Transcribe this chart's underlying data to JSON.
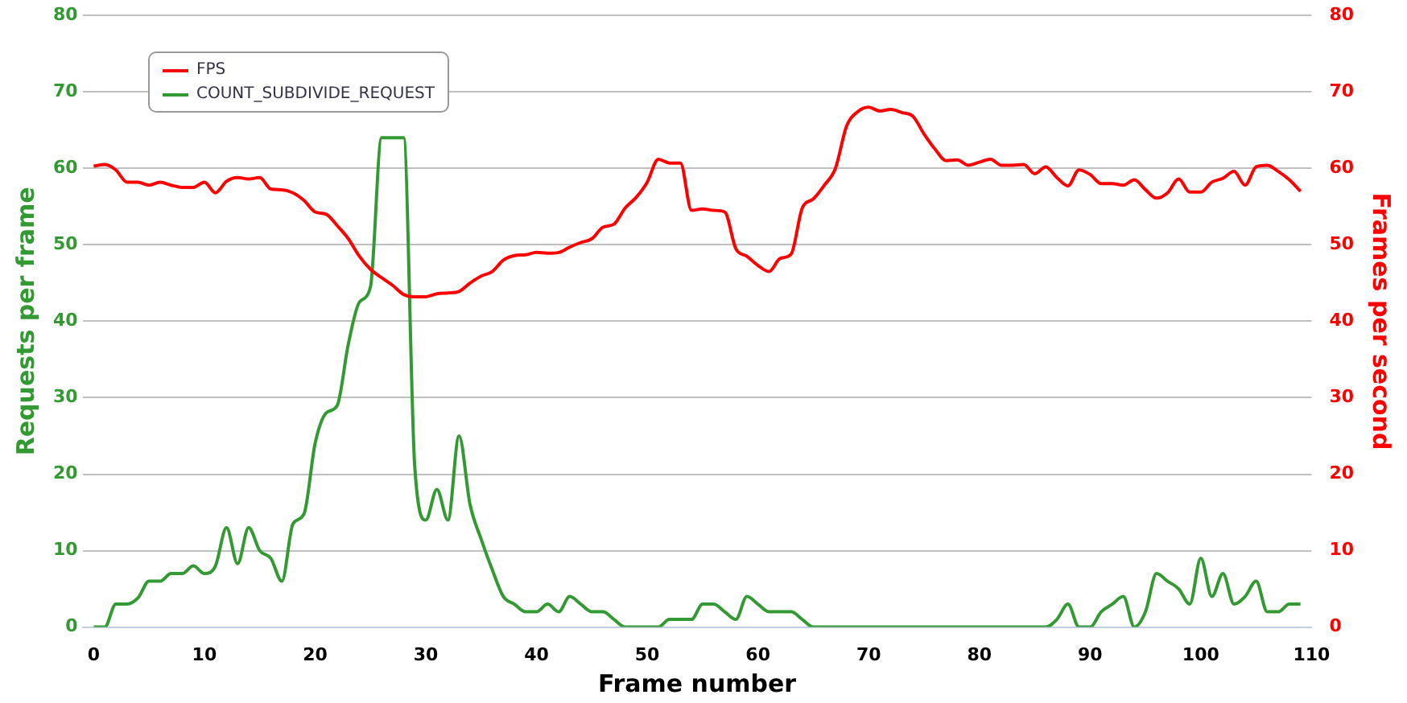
{
  "chart_data": {
    "type": "line",
    "xlabel": "Frame number",
    "ylabel": "Requests per frame",
    "y2label": "Frames per second",
    "x": [
      0,
      1,
      2,
      3,
      4,
      5,
      6,
      7,
      8,
      9,
      10,
      11,
      12,
      13,
      14,
      15,
      16,
      17,
      18,
      19,
      20,
      21,
      22,
      23,
      24,
      25,
      26,
      27,
      28,
      29,
      30,
      31,
      32,
      33,
      34,
      35,
      36,
      37,
      38,
      39,
      40,
      41,
      42,
      43,
      44,
      45,
      46,
      47,
      48,
      49,
      50,
      51,
      52,
      53,
      54,
      55,
      56,
      57,
      58,
      59,
      60,
      61,
      62,
      63,
      64,
      65,
      66,
      67,
      68,
      69,
      70,
      71,
      72,
      73,
      74,
      75,
      76,
      77,
      78,
      79,
      80,
      81,
      82,
      83,
      84,
      85,
      86,
      87,
      88,
      89,
      90,
      91,
      92,
      93,
      94,
      95,
      96,
      97,
      98,
      99,
      100,
      101,
      102,
      103,
      104,
      105,
      106,
      107,
      108,
      109
    ],
    "series": [
      {
        "name": "FPS",
        "color": "#ff0000",
        "axis": "y2",
        "values": [
          60.3,
          60.5,
          59.8,
          58.2,
          58.2,
          57.8,
          58.2,
          57.8,
          57.5,
          57.5,
          58.2,
          56.8,
          58.3,
          58.8,
          58.6,
          58.8,
          57.3,
          57.2,
          56.8,
          55.8,
          54.3,
          54,
          52.5,
          50.8,
          48.5,
          46.8,
          45.7,
          44.7,
          43.5,
          43.2,
          43.2,
          43.6,
          43.7,
          43.9,
          45,
          45.9,
          46.5,
          48,
          48.6,
          48.7,
          49,
          48.9,
          49,
          49.7,
          50.3,
          50.8,
          52.3,
          52.7,
          54.8,
          56.2,
          58.2,
          61.2,
          60.7,
          60.7,
          54.5,
          54.7,
          54.5,
          54.3,
          49.5,
          48.5,
          47.3,
          46.5,
          48.2,
          48.8,
          54.8,
          56,
          57.8,
          60,
          65.5,
          67.4,
          68,
          67.5,
          67.7,
          67.3,
          66.8,
          64.5,
          62.5,
          61,
          61.1,
          60.4,
          60.8,
          61.2,
          60.4,
          60.4,
          60.5,
          59.3,
          60.2,
          58.8,
          57.7,
          59.8,
          59.2,
          58,
          58,
          57.8,
          58.5,
          57.2,
          56.1,
          56.8,
          58.6,
          56.9,
          56.9,
          58.2,
          58.7,
          59.6,
          57.8,
          60.2,
          60.4,
          59.6,
          58.5,
          57
        ]
      },
      {
        "name": "COUNT_SUBDIVIDE_REQUEST",
        "color": "#339933",
        "axis": "y",
        "values": [
          0,
          0,
          3,
          3,
          3.8,
          6,
          6,
          7,
          7,
          8,
          7,
          8,
          13,
          8.3,
          13,
          10,
          9,
          6,
          13.5,
          14.8,
          24,
          28,
          29,
          37,
          42.5,
          44.5,
          64,
          64,
          64,
          21,
          14,
          18,
          14,
          25,
          16,
          11.5,
          7.5,
          4,
          3,
          2,
          2,
          3,
          2,
          4,
          3,
          2,
          2,
          1,
          0,
          0,
          0,
          0,
          1,
          1,
          1,
          3,
          3,
          2,
          1,
          4,
          3,
          2,
          2,
          2,
          1,
          0,
          0,
          0,
          0,
          0,
          0,
          0,
          0,
          0,
          0,
          0,
          0,
          0,
          0,
          0,
          0,
          0,
          0,
          0,
          0,
          0,
          0,
          1,
          3,
          0,
          0,
          2,
          3,
          4,
          0,
          2,
          7,
          6,
          5,
          3,
          9,
          4,
          7,
          3,
          4,
          6,
          2,
          2,
          3,
          3
        ]
      }
    ],
    "xlim": [
      -1,
      110
    ],
    "xticks": [
      0,
      10,
      20,
      30,
      40,
      50,
      60,
      70,
      80,
      90,
      100,
      110
    ],
    "ylim": [
      0,
      80
    ],
    "yticks": [
      0,
      10,
      20,
      30,
      40,
      50,
      60,
      70,
      80
    ],
    "y2lim": [
      0,
      80
    ],
    "y2ticks": [
      0,
      10,
      20,
      30,
      40,
      50,
      60,
      70,
      80
    ],
    "grid": "y",
    "legend": "top left",
    "marker": "none",
    "line_style": "solid"
  }
}
